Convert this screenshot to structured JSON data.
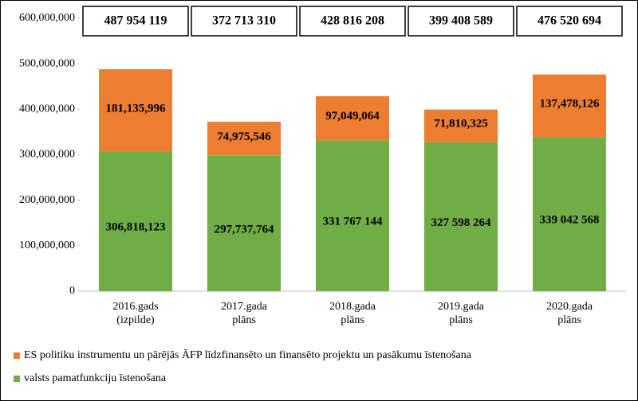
{
  "chart_data": {
    "type": "stacked_bar",
    "categories": [
      "2016.gads (izpilde)",
      "2017.gada plāns",
      "2018.gada plāns",
      "2019.gada plāns",
      "2020.gada plāns"
    ],
    "series": [
      {
        "name": "valsts pamatfunkciju īstenošana",
        "color": "#70ad47",
        "values": [
          306818123,
          297737764,
          331767144,
          327598264,
          339042568
        ],
        "value_labels": [
          "306,818,123",
          "297,737,764",
          "331 767 144",
          "327 598 264",
          "339 042 568"
        ]
      },
      {
        "name": "ES politiku instrumentu un pārējās ĀFP līdzfinansēto un finansēto projektu un pasākumu īstenošana",
        "color": "#ed7d31",
        "values": [
          181135996,
          74975546,
          97049064,
          71810325,
          137478126
        ],
        "value_labels": [
          "181,135,996",
          "74,975,546",
          "97,049,064",
          "71,810,325",
          "137,478,126"
        ]
      }
    ],
    "totals": {
      "values": [
        487954119,
        372713310,
        428816208,
        399408589,
        476520694
      ],
      "value_labels": [
        "487 954 119",
        "372 713 310",
        "428 816 208",
        "399 408 589",
        "476 520 694"
      ]
    },
    "ylim": [
      0,
      600000000
    ],
    "yticks": [
      0,
      {
        "value": 100000000,
        "label": "100,000,000"
      },
      {
        "value": 200000000,
        "label": "200,000,000"
      },
      {
        "value": 300000000,
        "label": "300,000,000"
      },
      {
        "value": 400000000,
        "label": "400,000,000"
      },
      {
        "value": 500000000,
        "label": "500,000,000"
      },
      {
        "value": 600000000,
        "label": "600,000,000"
      }
    ],
    "grid": false
  }
}
